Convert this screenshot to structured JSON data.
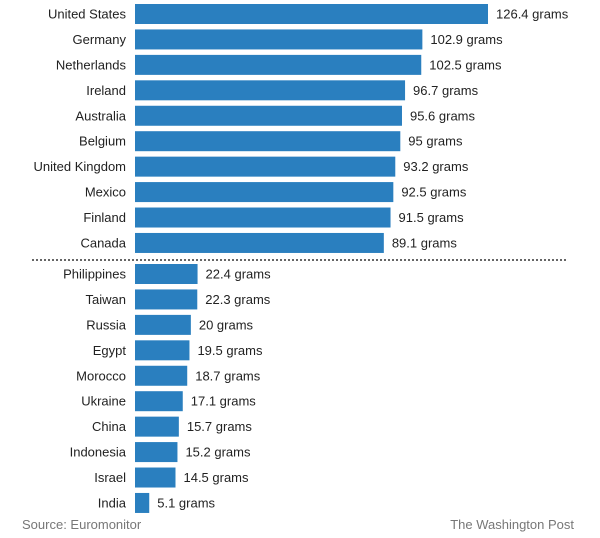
{
  "chart_data": {
    "type": "bar",
    "orientation": "horizontal",
    "bar_color": "#2a7fbf",
    "value_suffix": " grams",
    "groups": [
      {
        "categories": [
          "United States",
          "Germany",
          "Netherlands",
          "Ireland",
          "Australia",
          "Belgium",
          "United Kingdom",
          "Mexico",
          "Finland",
          "Canada"
        ],
        "values": [
          126.4,
          102.9,
          102.5,
          96.7,
          95.6,
          95,
          93.2,
          92.5,
          91.5,
          89.1
        ]
      },
      {
        "categories": [
          "Philippines",
          "Taiwan",
          "Russia",
          "Egypt",
          "Morocco",
          "Ukraine",
          "China",
          "Indonesia",
          "Israel",
          "India"
        ],
        "values": [
          22.4,
          22.3,
          20,
          19.5,
          18.7,
          17.1,
          15.7,
          15.2,
          14.5,
          5.1
        ]
      }
    ],
    "separator": "dotted-line",
    "xlim": [
      0,
      126.4
    ],
    "grid": false,
    "legend": "none"
  },
  "footer": {
    "source": "Source: Euromonitor",
    "credit": "The Washington Post"
  }
}
